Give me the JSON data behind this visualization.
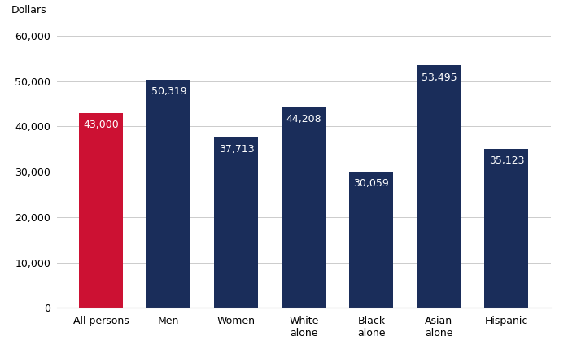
{
  "categories": [
    "All persons",
    "Men",
    "Women",
    "White\nalone",
    "Black\nalone",
    "Asian\nalone",
    "Hispanic"
  ],
  "values": [
    43000,
    50319,
    37713,
    44208,
    30059,
    53495,
    35123
  ],
  "bar_colors": [
    "#cc1133",
    "#1a2d5a",
    "#1a2d5a",
    "#1a2d5a",
    "#1a2d5a",
    "#1a2d5a",
    "#1a2d5a"
  ],
  "labels": [
    "43,000",
    "50,319",
    "37,713",
    "44,208",
    "30,059",
    "53,495",
    "35,123"
  ],
  "ylabel": "Dollars",
  "ylim": [
    0,
    60000
  ],
  "yticks": [
    0,
    10000,
    20000,
    30000,
    40000,
    50000,
    60000
  ],
  "bar_width": 0.65,
  "label_fontsize": 9,
  "ylabel_fontsize": 9,
  "tick_fontsize": 9,
  "background_color": "#ffffff"
}
